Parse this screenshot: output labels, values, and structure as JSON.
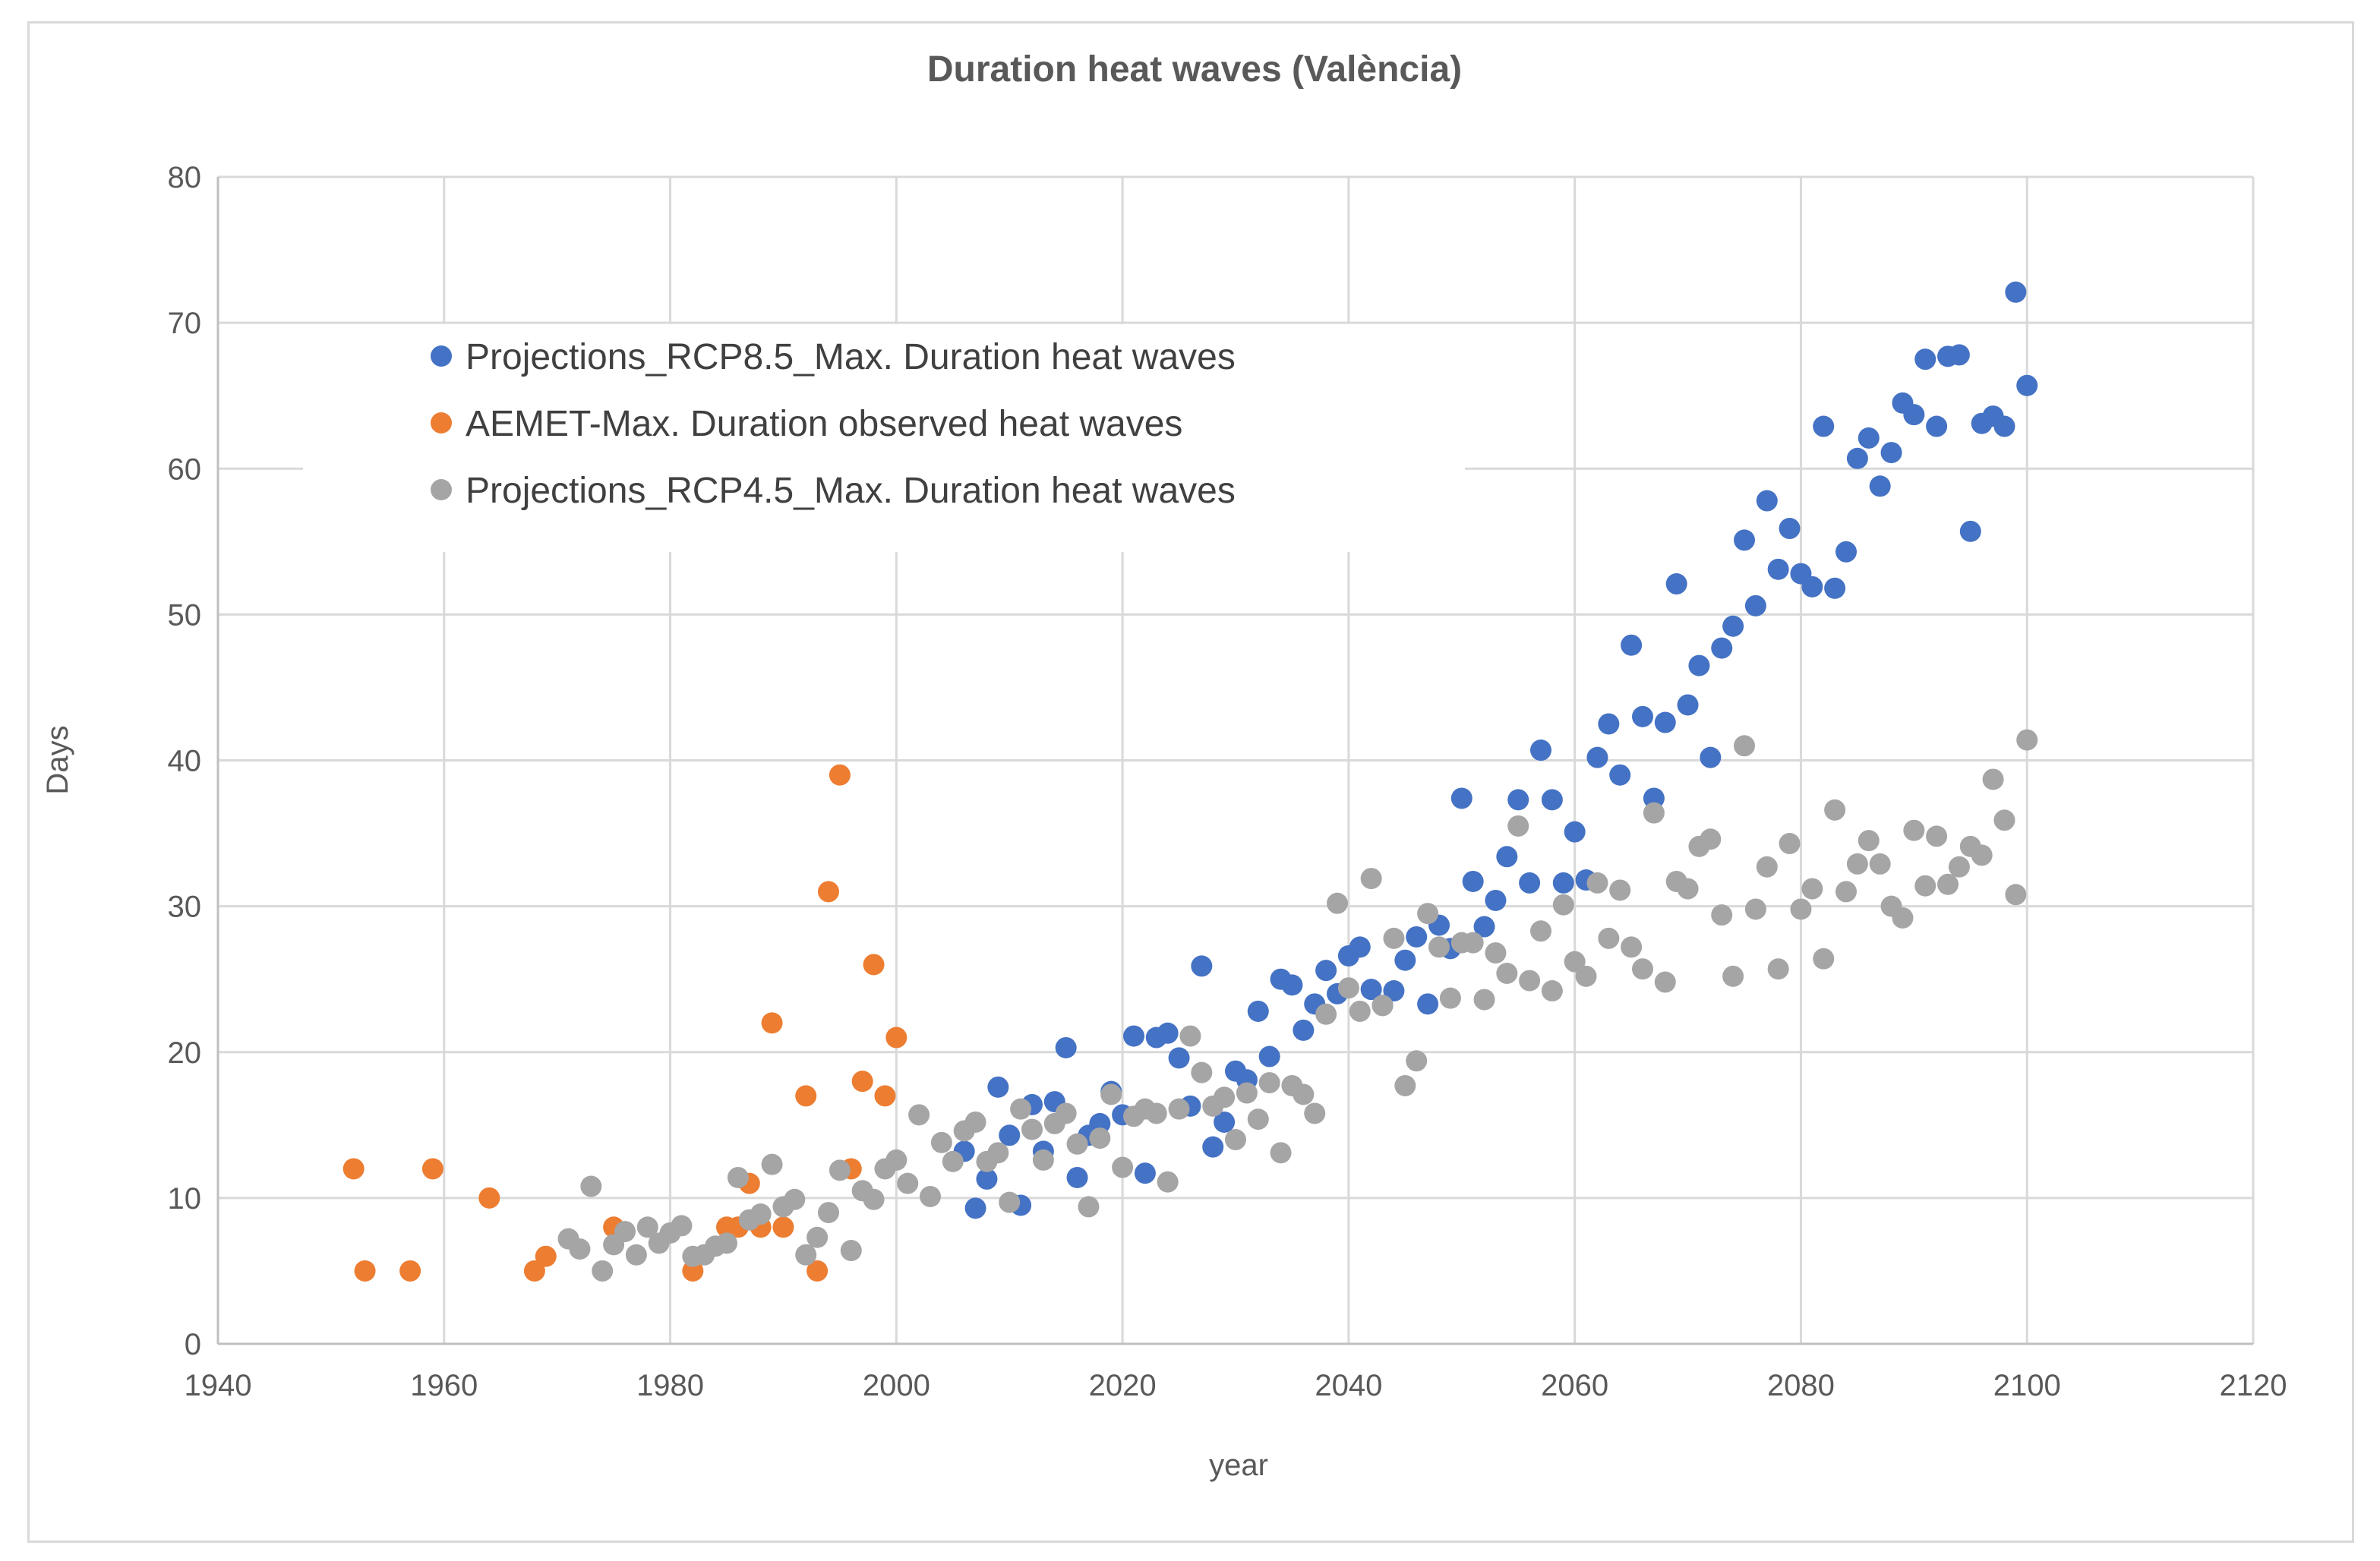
{
  "chart_data": {
    "type": "scatter",
    "title": "Duration heat waves  (València)",
    "xlabel": "year",
    "ylabel": "Days",
    "xlim": [
      1940,
      2120
    ],
    "ylim": [
      0,
      80
    ],
    "xticks": [
      1940,
      1960,
      1980,
      2000,
      2020,
      2040,
      2060,
      2080,
      2100,
      2120
    ],
    "yticks": [
      0,
      10,
      20,
      30,
      40,
      50,
      60,
      70,
      80
    ],
    "grid": true,
    "legend_position": "upper-left",
    "series": [
      {
        "name": "Projections_RCP8.5_Max. Duration heat waves",
        "color": "#4472c4",
        "x": [
          2006,
          2007,
          2008,
          2009,
          2010,
          2011,
          2012,
          2013,
          2014,
          2015,
          2016,
          2017,
          2018,
          2019,
          2020,
          2021,
          2022,
          2023,
          2024,
          2025,
          2026,
          2027,
          2028,
          2029,
          2030,
          2031,
          2032,
          2033,
          2034,
          2035,
          2036,
          2037,
          2038,
          2039,
          2040,
          2041,
          2042,
          2043,
          2044,
          2045,
          2046,
          2047,
          2048,
          2049,
          2050,
          2051,
          2052,
          2053,
          2054,
          2055,
          2056,
          2057,
          2058,
          2059,
          2060,
          2061,
          2062,
          2063,
          2064,
          2065,
          2066,
          2067,
          2068,
          2069,
          2070,
          2071,
          2072,
          2073,
          2074,
          2075,
          2076,
          2077,
          2078,
          2079,
          2080,
          2081,
          2082,
          2083,
          2084,
          2085,
          2086,
          2087,
          2088,
          2089,
          2090,
          2091,
          2092,
          2093,
          2094,
          2095,
          2096,
          2097,
          2098,
          2099,
          2100
        ],
        "y": [
          13.2,
          9.3,
          11.3,
          17.6,
          14.3,
          9.5,
          16.4,
          13.2,
          16.6,
          20.3,
          11.4,
          14.3,
          15.1,
          17.3,
          15.7,
          21.1,
          11.7,
          21.0,
          21.3,
          19.6,
          16.3,
          25.9,
          13.5,
          15.2,
          18.7,
          18.1,
          22.8,
          19.7,
          25.0,
          24.6,
          21.5,
          23.3,
          25.6,
          24.0,
          26.6,
          27.2,
          24.3,
          23.2,
          24.2,
          26.3,
          27.9,
          23.3,
          28.7,
          27.1,
          37.4,
          31.7,
          28.6,
          30.4,
          33.4,
          37.3,
          31.6,
          40.7,
          37.3,
          31.6,
          35.1,
          31.8,
          40.2,
          42.5,
          39.0,
          47.9,
          43.0,
          37.4,
          42.6,
          52.1,
          43.8,
          46.5,
          40.2,
          47.7,
          49.2,
          55.1,
          50.6,
          57.8,
          53.1,
          55.9,
          52.8,
          51.9,
          62.9,
          51.8,
          54.3,
          60.7,
          62.1,
          58.8,
          61.1,
          64.5,
          63.7,
          67.5,
          62.9,
          67.7,
          67.8,
          55.7,
          63.1,
          63.6,
          62.9,
          72.1,
          65.7
        ]
      },
      {
        "name": "AEMET-Max. Duration observed heat waves",
        "color": "#ed7d31",
        "x": [
          1952,
          1953,
          1957,
          1959,
          1964,
          1968,
          1969,
          1975,
          1982,
          1985,
          1986,
          1987,
          1988,
          1989,
          1990,
          1992,
          1993,
          1994,
          1995,
          1996,
          1997,
          1998,
          1999,
          2000
        ],
        "y": [
          12,
          5,
          5,
          12,
          10,
          5,
          6,
          8,
          5,
          8,
          8,
          11,
          8,
          22,
          8,
          17,
          5,
          31,
          39,
          12,
          18,
          26,
          17,
          21
        ]
      },
      {
        "name": "Projections_RCP4.5_Max. Duration heat waves",
        "color": "#a5a5a5",
        "x": [
          1971,
          1972,
          1973,
          1974,
          1975,
          1976,
          1977,
          1978,
          1979,
          1980,
          1981,
          1982,
          1983,
          1984,
          1985,
          1986,
          1987,
          1988,
          1989,
          1990,
          1991,
          1992,
          1993,
          1994,
          1995,
          1996,
          1997,
          1998,
          1999,
          2000,
          2001,
          2002,
          2003,
          2004,
          2005,
          2006,
          2007,
          2008,
          2009,
          2010,
          2011,
          2012,
          2013,
          2014,
          2015,
          2016,
          2017,
          2018,
          2019,
          2020,
          2021,
          2022,
          2023,
          2024,
          2025,
          2026,
          2027,
          2028,
          2029,
          2030,
          2031,
          2032,
          2033,
          2034,
          2035,
          2036,
          2037,
          2038,
          2039,
          2040,
          2041,
          2042,
          2043,
          2044,
          2045,
          2046,
          2047,
          2048,
          2049,
          2050,
          2051,
          2052,
          2053,
          2054,
          2055,
          2056,
          2057,
          2058,
          2059,
          2060,
          2061,
          2062,
          2063,
          2064,
          2065,
          2066,
          2067,
          2068,
          2069,
          2070,
          2071,
          2072,
          2073,
          2074,
          2075,
          2076,
          2077,
          2078,
          2079,
          2080,
          2081,
          2082,
          2083,
          2084,
          2085,
          2086,
          2087,
          2088,
          2089,
          2090,
          2091,
          2092,
          2093,
          2094,
          2095,
          2096,
          2097,
          2098,
          2099,
          2100
        ],
        "y": [
          7.2,
          6.5,
          10.8,
          5.0,
          6.8,
          7.7,
          6.1,
          8.0,
          6.9,
          7.6,
          8.1,
          6.0,
          6.1,
          6.7,
          6.9,
          11.4,
          8.5,
          8.9,
          12.3,
          9.4,
          9.9,
          6.1,
          7.3,
          9.0,
          11.9,
          6.4,
          10.5,
          9.9,
          12.0,
          12.6,
          11.0,
          15.7,
          10.1,
          13.8,
          12.5,
          14.6,
          15.2,
          12.5,
          13.1,
          9.7,
          16.1,
          14.7,
          12.6,
          15.1,
          15.8,
          13.7,
          9.4,
          14.1,
          17.1,
          12.1,
          15.6,
          16.1,
          15.8,
          11.1,
          16.1,
          21.1,
          18.6,
          16.3,
          16.9,
          14.0,
          17.2,
          15.4,
          17.9,
          13.1,
          17.7,
          17.1,
          15.8,
          22.6,
          30.2,
          24.4,
          22.8,
          31.9,
          23.2,
          27.8,
          17.7,
          19.4,
          29.5,
          27.2,
          23.7,
          27.5,
          27.5,
          23.6,
          26.8,
          25.4,
          35.5,
          24.9,
          28.3,
          24.2,
          30.1,
          26.2,
          25.2,
          31.6,
          27.8,
          31.1,
          27.2,
          25.7,
          36.4,
          24.8,
          31.7,
          31.2,
          34.1,
          34.6,
          29.4,
          25.2,
          41.0,
          29.8,
          32.7,
          25.7,
          34.3,
          29.8,
          31.2,
          26.4,
          36.6,
          31.0,
          32.9,
          34.5,
          32.9,
          30.0,
          29.2,
          35.2,
          31.4,
          34.8,
          31.5,
          32.7,
          34.1,
          33.5,
          38.7,
          35.9,
          30.8,
          41.4
        ]
      }
    ]
  }
}
